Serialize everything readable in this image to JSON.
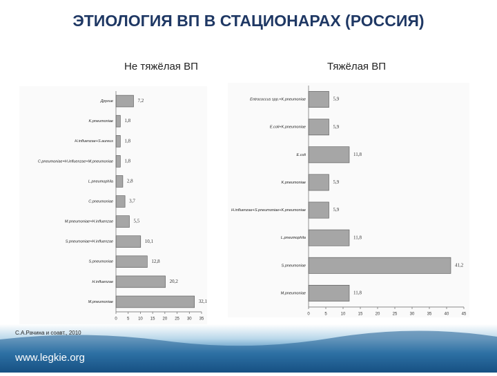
{
  "header": {
    "title": "ЭТИОЛОГИЯ ВП В СТАЦИОНАРАХ (РОССИЯ)"
  },
  "chart_data": [
    {
      "type": "bar",
      "orientation": "horizontal",
      "title": "Не тяжёлая ВП",
      "categories": [
        "Другие",
        "K.pneumoniae",
        "H.influenzae+S.aureus",
        "C.pneumoniae+H.influenzae+M.pneumoniae",
        "L.pneumophila",
        "C.pneumoniae",
        "M.pneumoniae+H.influenzae",
        "S.pneumoniae+H.influenzae",
        "S.pneumoniae",
        "H.influenzae",
        "M.pneumoniae"
      ],
      "values": [
        7.2,
        1.8,
        1.8,
        1.8,
        2.8,
        3.7,
        5.5,
        10.1,
        12.8,
        20.2,
        32.1
      ],
      "value_labels": [
        "7,2",
        "1,8",
        "1,8",
        "1,8",
        "2,8",
        "3,7",
        "5,5",
        "10,1",
        "12,8",
        "20,2",
        "32,1"
      ],
      "color": "#a6a6a6",
      "xlim": [
        0,
        35
      ],
      "xticks": [
        0,
        5,
        10,
        15,
        20,
        25,
        30,
        35
      ]
    },
    {
      "type": "bar",
      "orientation": "horizontal",
      "title": "Тяжёлая ВП",
      "categories": [
        "Entrococcus spp.+K.pneumoniae",
        "E.coli+K.pneumoniae",
        "E.coli",
        "K.pneumoniae",
        "H.influenzae+S.pneumoniae+K.pneumoniae",
        "L.pneumophila",
        "S.pneumoniae",
        "M.pneumoniae"
      ],
      "values": [
        5.9,
        5.9,
        11.8,
        5.9,
        5.9,
        11.8,
        41.2,
        11.8
      ],
      "value_labels": [
        "5,9",
        "5,9",
        "11,8",
        "5,9",
        "5,9",
        "11,8",
        "41,2",
        "11,8"
      ],
      "color": "#a6a6a6",
      "xlim": [
        0,
        45
      ],
      "xticks": [
        0,
        5,
        10,
        15,
        20,
        25,
        30,
        35,
        40,
        45
      ]
    }
  ],
  "footer": {
    "source": "С.А.Рачина и соавт., 2010",
    "url": "www.legkie.org"
  }
}
